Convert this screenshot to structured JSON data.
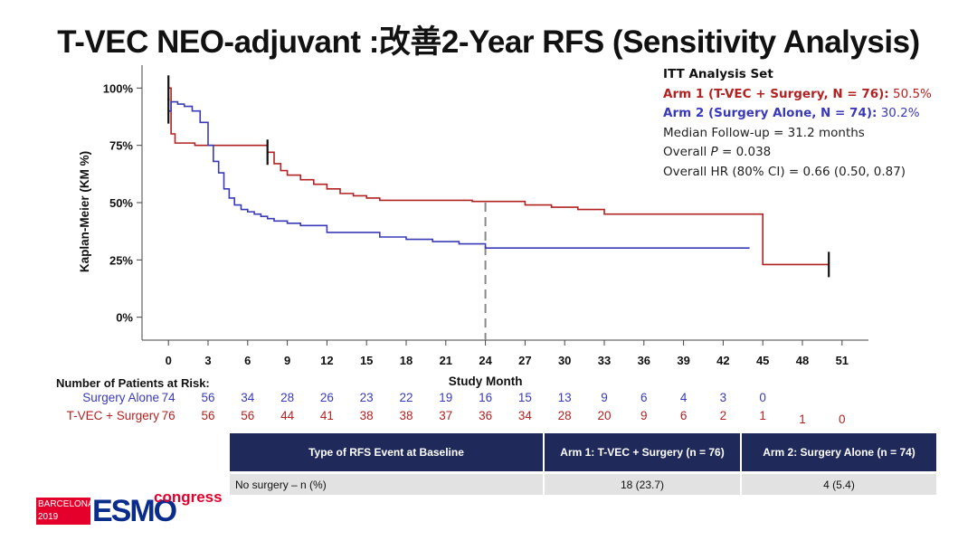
{
  "title": "T-VEC NEO-adjuvant :改善2-Year RFS (Sensitivity Analysis)",
  "info": {
    "header": "ITT Analysis Set",
    "arm1_label": "Arm 1 (T-VEC + Surgery, N = 76):",
    "arm1_value": " 50.5%",
    "arm2_label": "Arm 2 (Surgery Alone, N = 74):",
    "arm2_value": " 30.2%",
    "median": "Median Follow-up = 31.2 months",
    "p_prefix": "Overall ",
    "p_symbol": "P",
    "p_value": " = 0.038",
    "hr": "Overall HR (80% CI) = 0.66 (0.50, 0.87)"
  },
  "colors": {
    "arm1": "#b22222",
    "arm2": "#3a3ab8",
    "table_header": "#1f2a5a"
  },
  "chart_data": {
    "type": "line",
    "xlabel": "Study Month",
    "ylabel": "Kaplan-Meier (KM %)",
    "xticks": [
      0,
      3,
      6,
      9,
      12,
      15,
      18,
      21,
      24,
      27,
      30,
      33,
      36,
      39,
      42,
      45,
      48,
      51
    ],
    "yticks": [
      0,
      25,
      50,
      75,
      100
    ],
    "ytick_labels": [
      "0%",
      "25%",
      "50%",
      "75%",
      "100%"
    ],
    "xlim": [
      -2,
      53
    ],
    "ylim": [
      -10,
      110
    ],
    "reference_line_x": 24,
    "series": [
      {
        "name": "Arm 1 (T-VEC + Surgery, N = 76)",
        "color": "#b22222",
        "x": [
          0,
          0.2,
          0.5,
          1.0,
          1.5,
          2.0,
          2.5,
          3.0,
          3.5,
          4.5,
          6.5,
          7.5,
          8.0,
          8.5,
          9.0,
          10.0,
          11.0,
          12.0,
          13.0,
          14.0,
          15.0,
          16.0,
          22.0,
          23.0,
          25.0,
          27.0,
          29.0,
          31.0,
          33.0,
          44.8,
          45.0,
          50.0
        ],
        "y": [
          100,
          80,
          76,
          76,
          76,
          75,
          75,
          75,
          75,
          75,
          75,
          72,
          67,
          64,
          62,
          60,
          58,
          56,
          54,
          53,
          52,
          51,
          51,
          50.5,
          50.5,
          49,
          48,
          47,
          45,
          45,
          23,
          23
        ]
      },
      {
        "name": "Arm 2 (Surgery Alone, N = 74)",
        "color": "#3a3ab8",
        "x": [
          0,
          0.2,
          0.7,
          1.2,
          1.8,
          2.4,
          3.0,
          3.4,
          3.8,
          4.2,
          4.6,
          5.0,
          5.5,
          6.0,
          6.5,
          7.0,
          7.5,
          8.0,
          9.0,
          10.0,
          11.0,
          12.0,
          14.0,
          16.0,
          18.0,
          20.0,
          22.0,
          24.0,
          44.0
        ],
        "y": [
          90,
          94,
          93,
          92,
          90,
          85,
          75,
          68,
          63,
          56,
          52,
          49,
          47,
          46,
          45,
          44,
          43,
          42,
          41,
          40,
          40,
          37,
          37,
          35,
          34,
          33,
          32,
          30.2,
          30.2
        ]
      }
    ],
    "censor_marks": [
      {
        "series": 0,
        "x": 0,
        "y": 100
      },
      {
        "series": 0,
        "x": 7.5,
        "y": 72
      },
      {
        "series": 0,
        "x": 50,
        "y": 23
      },
      {
        "series": 1,
        "x": 0,
        "y": 90
      }
    ]
  },
  "risk_table": {
    "header": "Number of Patients at Risk:",
    "rows": [
      {
        "label": "Surgery Alone",
        "color": "#3a3ab8",
        "values": [
          "74",
          "56",
          "34",
          "28",
          "26",
          "23",
          "22",
          "19",
          "16",
          "15",
          "13",
          "9",
          "6",
          "4",
          "3",
          "0",
          "",
          ""
        ]
      },
      {
        "label": "T-VEC + Surgery",
        "color": "#b22222",
        "values": [
          "76",
          "56",
          "56",
          "44",
          "41",
          "38",
          "38",
          "37",
          "36",
          "34",
          "28",
          "20",
          "9",
          "6",
          "2",
          "1",
          "1",
          "0"
        ]
      }
    ]
  },
  "event_table": {
    "headers": [
      "Type of RFS Event at Baseline",
      "Arm 1: T-VEC + Surgery  (n = 76)",
      "Arm 2: Surgery Alone  (n = 74)"
    ],
    "rows": [
      [
        "No surgery – n (%)",
        "18 (23.7)",
        "4 (5.4)"
      ]
    ]
  },
  "logo": {
    "line1": "BARCELONA",
    "line2": "2019",
    "main": "ESMO",
    "sub": "congress"
  }
}
